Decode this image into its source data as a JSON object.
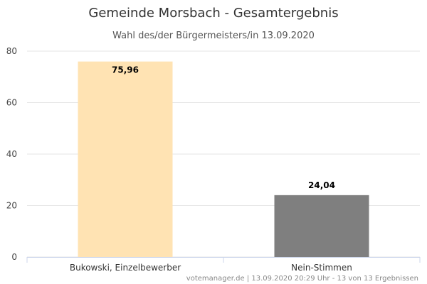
{
  "chart_data": {
    "type": "bar",
    "title": "Gemeinde Morsbach - Gesamtergebnis",
    "subtitle": "Wahl des/der Bürgermeisters/in 13.09.2020",
    "categories": [
      "Bukowski, Einzelbewerber",
      "Nein-Stimmen"
    ],
    "values": [
      75.96,
      24.04
    ],
    "data_labels": [
      "75,96",
      "24,04"
    ],
    "colors": [
      "#ffe3b3",
      "#7f7f7f"
    ],
    "ylim": [
      0,
      80
    ],
    "yticks": [
      "0",
      "20",
      "40",
      "60",
      "80"
    ],
    "ytick_values": [
      0,
      20,
      40,
      60,
      80
    ],
    "grid": true,
    "legend": "none",
    "xlabel": "",
    "ylabel": "",
    "credits": "votemanager.de | 13.09.2020 20:29 Uhr - 13 von 13 Ergebnissen"
  }
}
